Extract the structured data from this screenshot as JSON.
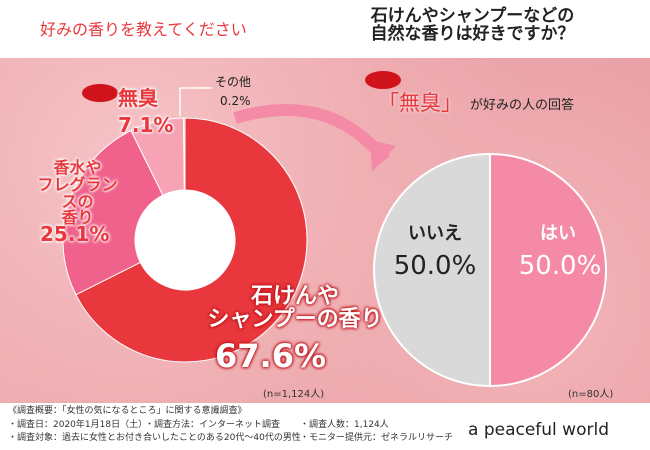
{
  "chart_data": [
    {
      "type": "donut",
      "title": "好みの香りを教えてください",
      "categories": [
        "石けんや\nシャンプーの香り",
        "香水や\nフレグランスの\n香り",
        "無臭",
        "その他"
      ],
      "values": [
        67.6,
        25.1,
        7.1,
        0.2
      ],
      "value_labels": [
        "67.6%",
        "25.1%",
        "7.1%",
        "0.2%"
      ],
      "colors": [
        "#e8383d",
        "#f0628c",
        "#f5a3b5",
        "#f8d0d8"
      ],
      "note": "(n=1,124人)"
    },
    {
      "type": "pie",
      "title": "石けんやシャンプーなどの\n自然な香りは好きですか？",
      "subtitle_highlight": "「無臭」",
      "subtitle": "が好みの人の回答",
      "categories": [
        "はい",
        "いいえ"
      ],
      "values": [
        50.0,
        50.0
      ],
      "value_labels": [
        "50.0%",
        "50.0%"
      ],
      "colors": [
        "#f48aa6",
        "#d9d9d9"
      ],
      "note": "(n=80人)"
    }
  ],
  "footer": {
    "heading": "《調査概要：「女性の気になるところ」に関する意識調査》",
    "items": [
      "・調査日：2020年1月18日（土）",
      "・調査方法：インターネット調査",
      "・調査人数：1,124人",
      "・調査対象：過去に女性とお付き合いしたことのある20代〜40代の男性",
      "・モニター提供元：ゼネラルリサーチ"
    ]
  },
  "brand": "a peaceful world"
}
